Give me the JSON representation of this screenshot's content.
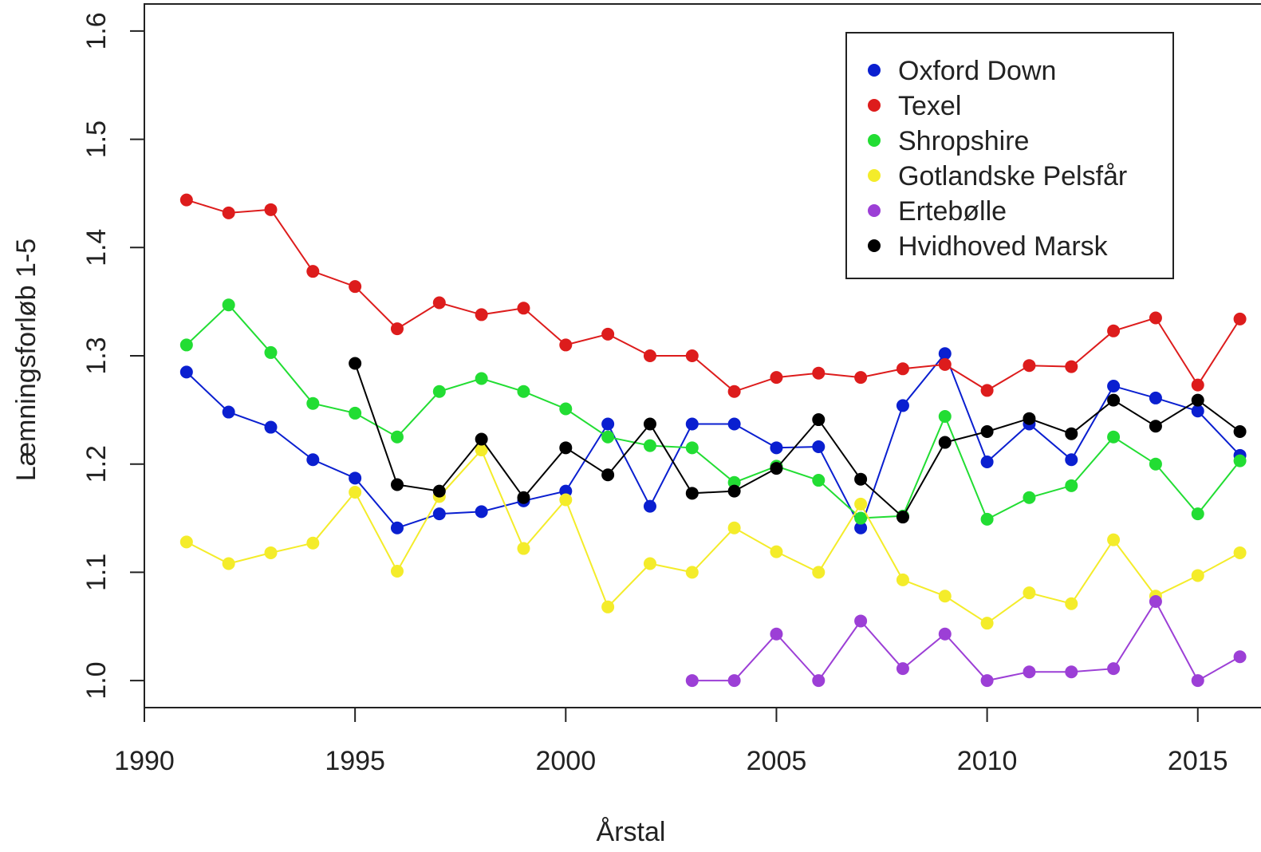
{
  "chart_data": {
    "type": "line",
    "title": "",
    "xlabel": "Årstal",
    "ylabel": "Læmningsforløb 1-5",
    "xlim": [
      1990,
      2016.5
    ],
    "ylim": [
      0.975,
      1.625
    ],
    "xticks": [
      1990,
      1995,
      2000,
      2005,
      2010,
      2015
    ],
    "xtick_labels": [
      "1990",
      "1995",
      "2000",
      "2005",
      "2010",
      "2015"
    ],
    "yticks": [
      1.0,
      1.1,
      1.2,
      1.3,
      1.4,
      1.5,
      1.6
    ],
    "ytick_labels": [
      "1.0",
      "1.1",
      "1.2",
      "1.3",
      "1.4",
      "1.5",
      "1.6"
    ],
    "grid": false,
    "legend_position": "top-right",
    "series": [
      {
        "name": "Oxford Down",
        "color": "#0a1fd0",
        "points": [
          [
            1991,
            1.285
          ],
          [
            1992,
            1.248
          ],
          [
            1993,
            1.234
          ],
          [
            1994,
            1.204
          ],
          [
            1995,
            1.187
          ],
          [
            1996,
            1.141
          ],
          [
            1997,
            1.154
          ],
          [
            1998,
            1.156
          ],
          [
            1999,
            1.166
          ],
          [
            2000,
            1.175
          ],
          [
            2001,
            1.237
          ],
          [
            2002,
            1.161
          ],
          [
            2003,
            1.237
          ],
          [
            2004,
            1.237
          ],
          [
            2005,
            1.215
          ],
          [
            2006,
            1.216
          ],
          [
            2007,
            1.141
          ],
          [
            2008,
            1.254
          ],
          [
            2009,
            1.302
          ],
          [
            2010,
            1.202
          ],
          [
            2011,
            1.237
          ],
          [
            2012,
            1.204
          ],
          [
            2013,
            1.272
          ],
          [
            2014,
            1.261
          ],
          [
            2015,
            1.249
          ],
          [
            2016,
            1.208
          ]
        ]
      },
      {
        "name": "Texel",
        "color": "#dd1c1c",
        "points": [
          [
            1991,
            1.444
          ],
          [
            1992,
            1.432
          ],
          [
            1993,
            1.435
          ],
          [
            1994,
            1.378
          ],
          [
            1995,
            1.364
          ],
          [
            1996,
            1.325
          ],
          [
            1997,
            1.349
          ],
          [
            1998,
            1.338
          ],
          [
            1999,
            1.344
          ],
          [
            2000,
            1.31
          ],
          [
            2001,
            1.32
          ],
          [
            2002,
            1.3
          ],
          [
            2003,
            1.3
          ],
          [
            2004,
            1.267
          ],
          [
            2005,
            1.28
          ],
          [
            2006,
            1.284
          ],
          [
            2007,
            1.28
          ],
          [
            2008,
            1.288
          ],
          [
            2009,
            1.292
          ],
          [
            2010,
            1.268
          ],
          [
            2011,
            1.291
          ],
          [
            2012,
            1.29
          ],
          [
            2013,
            1.323
          ],
          [
            2014,
            1.335
          ],
          [
            2015,
            1.273
          ],
          [
            2016,
            1.334
          ]
        ]
      },
      {
        "name": "Shropshire",
        "color": "#22dd33",
        "points": [
          [
            1991,
            1.31
          ],
          [
            1992,
            1.347
          ],
          [
            1993,
            1.303
          ],
          [
            1994,
            1.256
          ],
          [
            1995,
            1.247
          ],
          [
            1996,
            1.225
          ],
          [
            1997,
            1.267
          ],
          [
            1998,
            1.279
          ],
          [
            1999,
            1.267
          ],
          [
            2000,
            1.251
          ],
          [
            2001,
            1.225
          ],
          [
            2002,
            1.217
          ],
          [
            2003,
            1.215
          ],
          [
            2004,
            1.183
          ],
          [
            2005,
            1.198
          ],
          [
            2006,
            1.185
          ],
          [
            2007,
            1.15
          ],
          [
            2008,
            1.152
          ],
          [
            2009,
            1.244
          ],
          [
            2010,
            1.149
          ],
          [
            2011,
            1.169
          ],
          [
            2012,
            1.18
          ],
          [
            2013,
            1.225
          ],
          [
            2014,
            1.2
          ],
          [
            2015,
            1.154
          ],
          [
            2016,
            1.203
          ]
        ]
      },
      {
        "name": "Gotlandske Pelsfår",
        "color": "#f4ec2a",
        "points": [
          [
            1991,
            1.128
          ],
          [
            1992,
            1.108
          ],
          [
            1993,
            1.118
          ],
          [
            1994,
            1.127
          ],
          [
            1995,
            1.174
          ],
          [
            1996,
            1.101
          ],
          [
            1997,
            1.17
          ],
          [
            1998,
            1.213
          ],
          [
            1999,
            1.122
          ],
          [
            2000,
            1.167
          ],
          [
            2001,
            1.068
          ],
          [
            2002,
            1.108
          ],
          [
            2003,
            1.1
          ],
          [
            2004,
            1.141
          ],
          [
            2005,
            1.119
          ],
          [
            2006,
            1.1
          ],
          [
            2007,
            1.163
          ],
          [
            2008,
            1.093
          ],
          [
            2009,
            1.078
          ],
          [
            2010,
            1.053
          ],
          [
            2011,
            1.081
          ],
          [
            2012,
            1.071
          ],
          [
            2013,
            1.13
          ],
          [
            2014,
            1.078
          ],
          [
            2015,
            1.097
          ],
          [
            2016,
            1.118
          ]
        ]
      },
      {
        "name": "Ertebølle",
        "color": "#9c3fd6",
        "points": [
          [
            2003,
            1.0
          ],
          [
            2004,
            1.0
          ],
          [
            2005,
            1.043
          ],
          [
            2006,
            1.0
          ],
          [
            2007,
            1.055
          ],
          [
            2008,
            1.011
          ],
          [
            2009,
            1.043
          ],
          [
            2010,
            1.0
          ],
          [
            2011,
            1.008
          ],
          [
            2012,
            1.008
          ],
          [
            2013,
            1.011
          ],
          [
            2014,
            1.073
          ],
          [
            2015,
            1.0
          ],
          [
            2016,
            1.022
          ]
        ]
      },
      {
        "name": "Hvidhoved Marsk",
        "color": "#000000",
        "points": [
          [
            1995,
            1.293
          ],
          [
            1996,
            1.181
          ],
          [
            1997,
            1.175
          ],
          [
            1998,
            1.223
          ],
          [
            1999,
            1.169
          ],
          [
            2000,
            1.215
          ],
          [
            2001,
            1.19
          ],
          [
            2002,
            1.237
          ],
          [
            2003,
            1.173
          ],
          [
            2004,
            1.175
          ],
          [
            2005,
            1.196
          ],
          [
            2006,
            1.241
          ],
          [
            2007,
            1.186
          ],
          [
            2008,
            1.151
          ],
          [
            2009,
            1.22
          ],
          [
            2010,
            1.23
          ],
          [
            2011,
            1.242
          ],
          [
            2012,
            1.228
          ],
          [
            2013,
            1.259
          ],
          [
            2014,
            1.235
          ],
          [
            2015,
            1.259
          ],
          [
            2016,
            1.23
          ]
        ]
      }
    ]
  }
}
